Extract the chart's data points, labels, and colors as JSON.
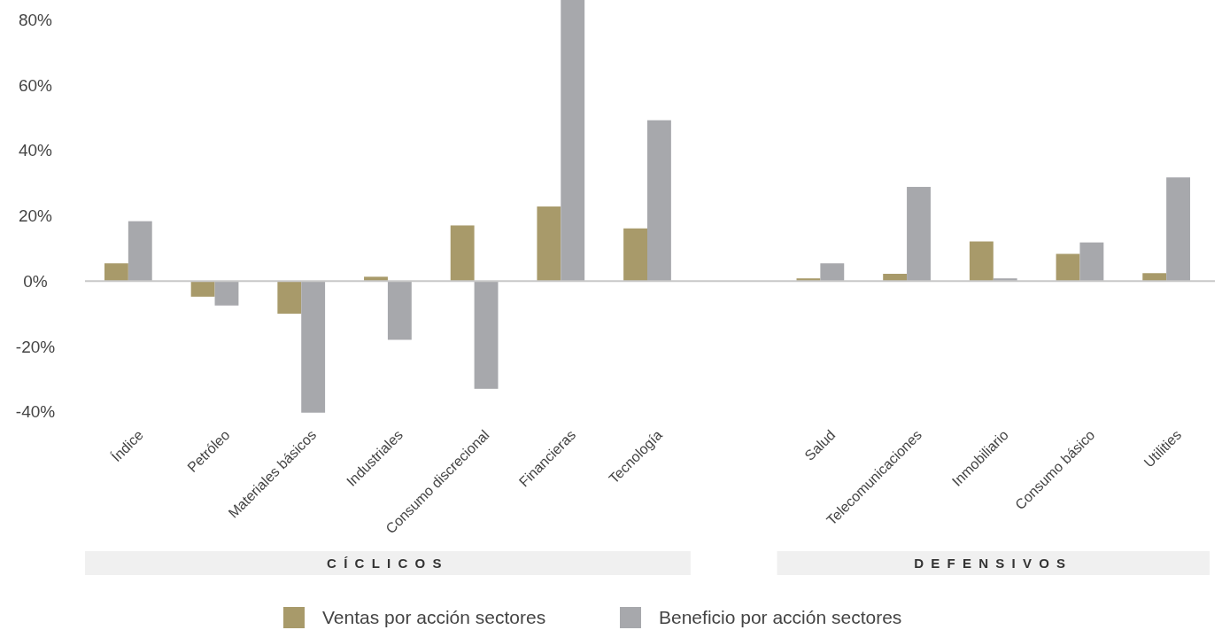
{
  "chart_data": {
    "type": "bar",
    "categories": [
      "Índice",
      "Petróleo",
      "Materiales básicos",
      "Industriales",
      "Consumo discrecional",
      "Financieras",
      "Tecnología",
      null,
      "Salud",
      "Telecomunicaciones",
      "Inmobiliario",
      "Consumo básico",
      "Utilities"
    ],
    "series": [
      {
        "name": "Ventas por acción sectores",
        "color": "#a89a6a",
        "values": [
          5.4,
          -4.8,
          -10,
          1.3,
          17,
          22.8,
          16.1,
          null,
          0.8,
          2.2,
          12.1,
          8.3,
          2.4
        ]
      },
      {
        "name": "Beneficio por acción sectores",
        "color": "#a7a8ac",
        "values": [
          18.3,
          -7.5,
          -40.3,
          -18,
          -33,
          86,
          49.2,
          null,
          5.4,
          28.8,
          0.8,
          11.8,
          31.7
        ]
      }
    ],
    "ylim": [
      -42,
      86
    ],
    "yticks": [
      {
        "value": -40,
        "label": "-40%"
      },
      {
        "value": -20,
        "label": "-20%"
      },
      {
        "value": 0,
        "label": "0%"
      },
      {
        "value": 20,
        "label": "20%"
      },
      {
        "value": 40,
        "label": "40%"
      },
      {
        "value": 60,
        "label": "60%"
      },
      {
        "value": 80,
        "label": "80%"
      }
    ],
    "annotations": [
      "CÍCLICOS",
      "DEFENSIVOS"
    ],
    "legend": "bottom"
  }
}
